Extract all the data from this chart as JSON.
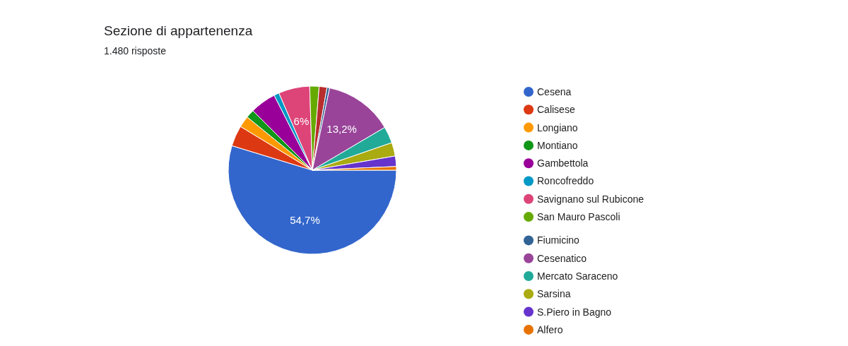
{
  "chart_data": {
    "type": "pie",
    "title": "Sezione di appartenenza",
    "subtitle": "1.480 risposte",
    "categories": [
      "Cesena",
      "Calisese",
      "Longiano",
      "Montiano",
      "Gambettola",
      "Roncofreddo",
      "Savignano sul Rubicone",
      "San Mauro Pascoli",
      null,
      "Fiumicino",
      "Cesenatico",
      "Mercato Saraceno",
      "Sarsina",
      "S.Piero in Bagno",
      "Alfero"
    ],
    "values": [
      54.7,
      4.0,
      2.2,
      1.6,
      5.0,
      1.0,
      6,
      1.8,
      1.5,
      0.5,
      13.2,
      3.2,
      2.6,
      2.0,
      0.7
    ],
    "colors": [
      "#3366cc",
      "#dc3912",
      "#ff9900",
      "#109618",
      "#990099",
      "#0099c6",
      "#dd4477",
      "#66aa00",
      "#b82e2e",
      "#316395",
      "#994499",
      "#22aa99",
      "#aaaa11",
      "#6633cc",
      "#e67300"
    ],
    "value_labels": [
      "54,7%",
      null,
      null,
      null,
      null,
      null,
      "6%",
      null,
      null,
      null,
      "13,2%",
      null,
      null,
      null,
      null
    ],
    "legend": "right"
  }
}
